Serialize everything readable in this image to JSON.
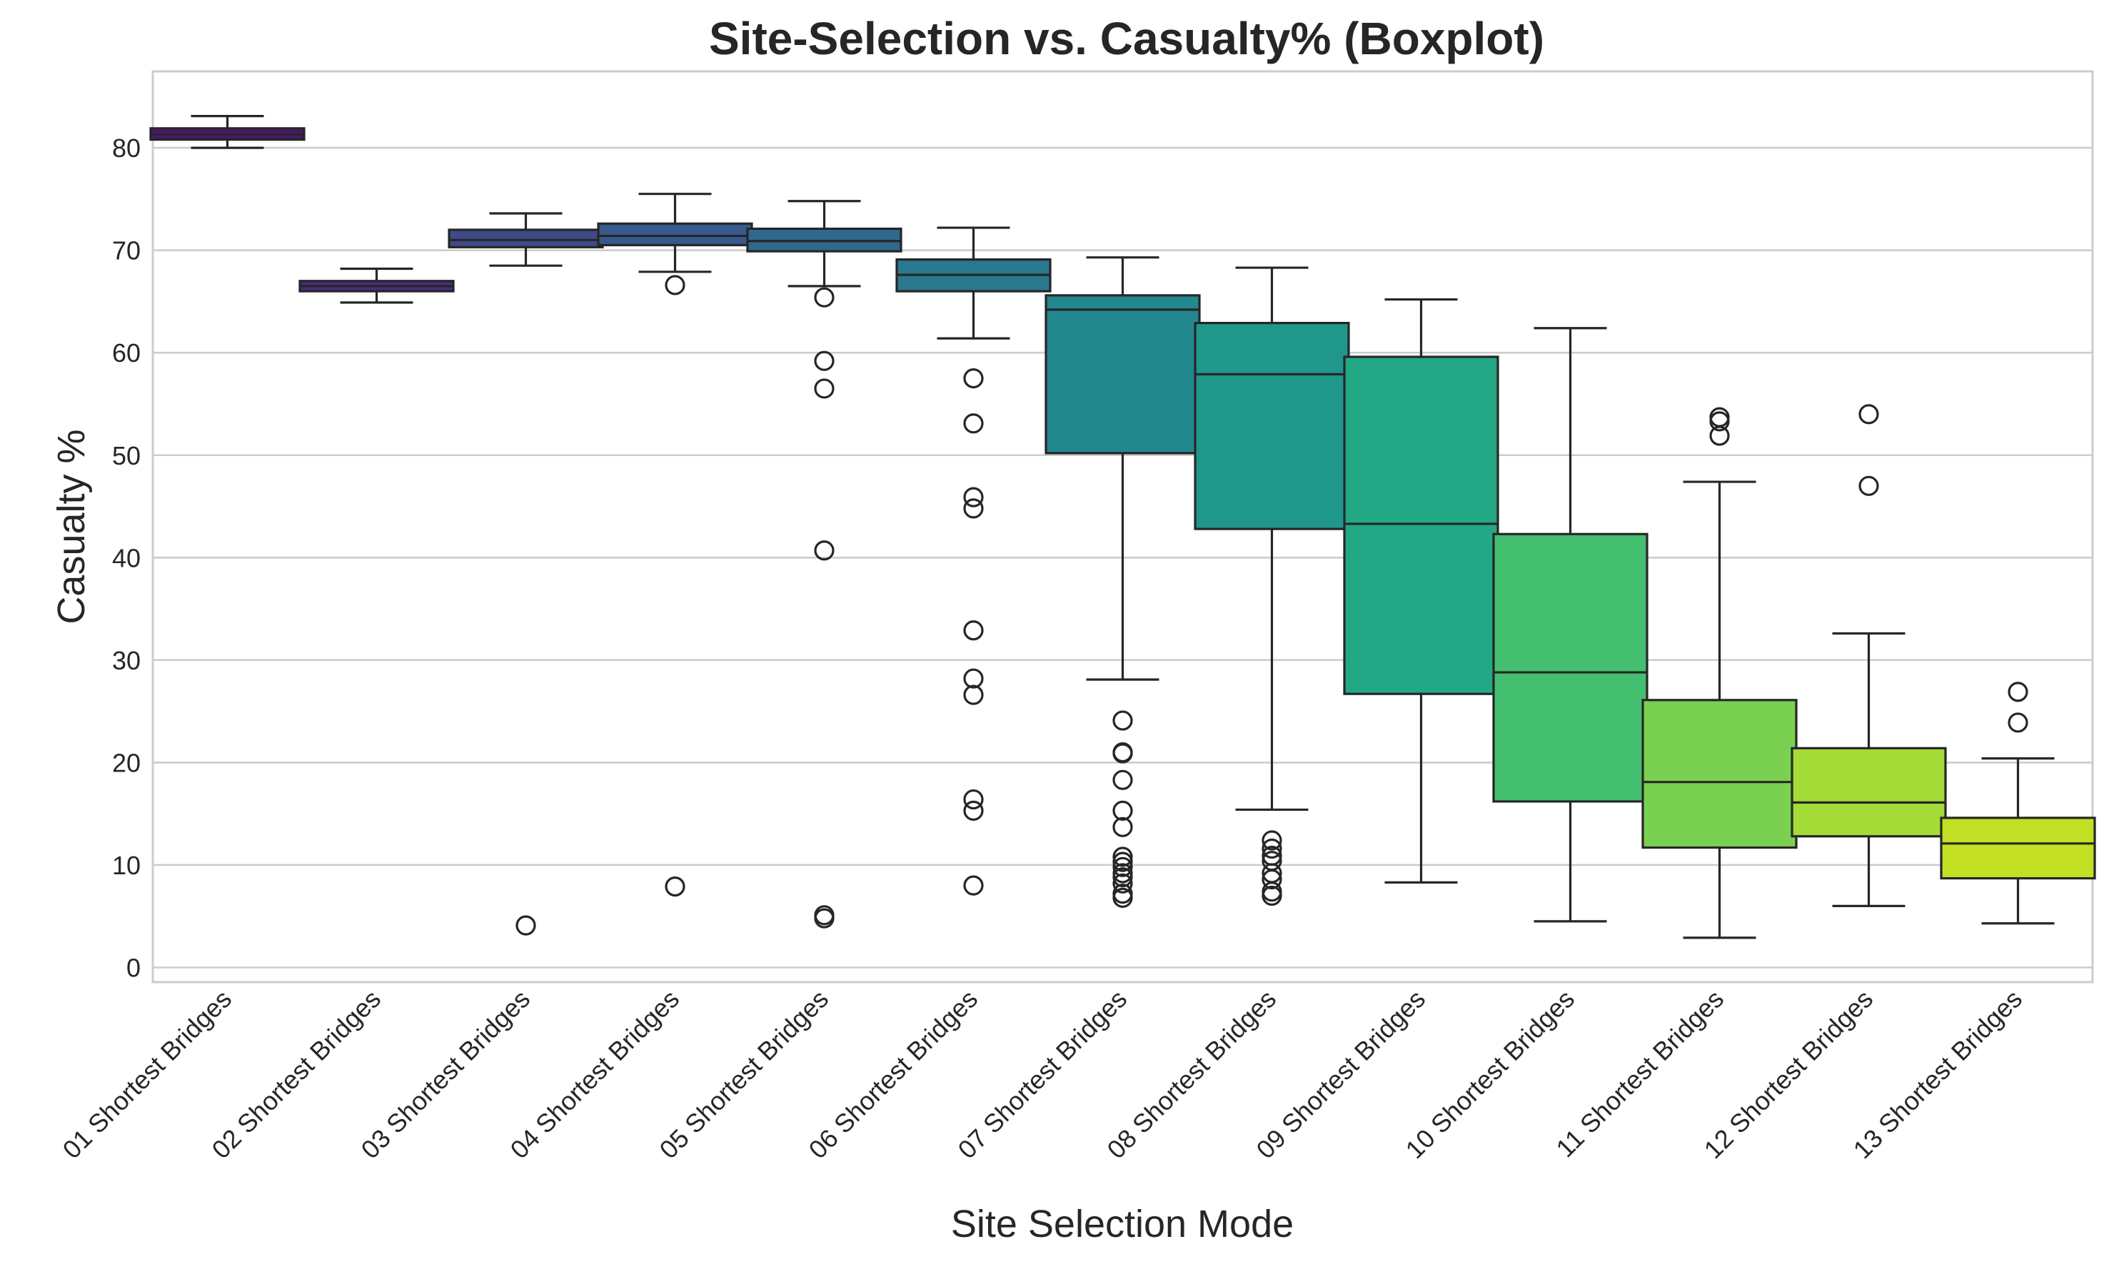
{
  "chart_data": {
    "type": "boxplot",
    "title": "Site-Selection vs. Casualty% (Boxplot)",
    "xlabel": "Site Selection Mode",
    "ylabel": "Casualty %",
    "ylim": [
      -2,
      87.5
    ],
    "yticks": [
      0,
      10,
      20,
      30,
      40,
      50,
      60,
      70,
      80
    ],
    "grid": "horizontal",
    "palette": "viridis",
    "categories": [
      "01 Shortest Bridges",
      "02 Shortest Bridges",
      "03 Shortest Bridges",
      "04 Shortest Bridges",
      "05 Shortest Bridges",
      "06 Shortest Bridges",
      "07 Shortest Bridges",
      "08 Shortest Bridges",
      "09 Shortest Bridges",
      "10 Shortest Bridges",
      "11 Shortest Bridges",
      "12 Shortest Bridges",
      "13 Shortest Bridges"
    ],
    "boxes": [
      {
        "whislo": 80.0,
        "q1": 80.8,
        "median": 81.3,
        "q3": 81.9,
        "whishi": 83.1,
        "fliers": [],
        "color": "#48186a"
      },
      {
        "whislo": 64.9,
        "q1": 66.0,
        "median": 66.5,
        "q3": 67.0,
        "whishi": 68.2,
        "fliers": [],
        "color": "#472d7b"
      },
      {
        "whislo": 68.5,
        "q1": 70.3,
        "median": 71.0,
        "q3": 72.0,
        "whishi": 73.6,
        "fliers": [
          4.1
        ],
        "color": "#3e4a89"
      },
      {
        "whislo": 67.9,
        "q1": 70.5,
        "median": 71.4,
        "q3": 72.6,
        "whishi": 75.5,
        "fliers": [
          66.6,
          7.9
        ],
        "color": "#38598c"
      },
      {
        "whislo": 66.5,
        "q1": 69.9,
        "median": 70.9,
        "q3": 72.1,
        "whishi": 74.8,
        "fliers": [
          65.4,
          59.2,
          56.5,
          40.7,
          5.1,
          4.8
        ],
        "color": "#30698e"
      },
      {
        "whislo": 61.4,
        "q1": 66.0,
        "median": 67.6,
        "q3": 69.1,
        "whishi": 72.2,
        "fliers": [
          57.5,
          53.1,
          45.9,
          44.8,
          32.9,
          28.2,
          26.6,
          16.4,
          15.3,
          8.0
        ],
        "color": "#2a788e"
      },
      {
        "whislo": 28.1,
        "q1": 50.2,
        "median": 64.2,
        "q3": 65.6,
        "whishi": 69.3,
        "fliers": [
          24.1,
          21.0,
          20.9,
          18.3,
          15.3,
          13.7,
          10.8,
          10.3,
          9.8,
          9.2,
          8.8,
          8.2,
          7.2,
          6.8
        ],
        "color": "#23888e"
      },
      {
        "whislo": 15.4,
        "q1": 42.8,
        "median": 57.9,
        "q3": 62.9,
        "whishi": 68.3,
        "fliers": [
          12.4,
          11.6,
          10.9,
          10.4,
          9.2,
          8.6,
          7.4,
          7.0
        ],
        "color": "#1f988b"
      },
      {
        "whislo": 8.3,
        "q1": 26.7,
        "median": 43.3,
        "q3": 59.6,
        "whishi": 65.2,
        "fliers": [],
        "color": "#22a884"
      },
      {
        "whislo": 4.5,
        "q1": 16.2,
        "median": 28.8,
        "q3": 42.3,
        "whishi": 62.4,
        "fliers": [],
        "color": "#44bf70"
      },
      {
        "whislo": 2.9,
        "q1": 11.7,
        "median": 18.1,
        "q3": 26.1,
        "whishi": 47.4,
        "fliers": [
          53.7,
          53.3,
          51.9
        ],
        "color": "#7ad151"
      },
      {
        "whislo": 6.0,
        "q1": 12.8,
        "median": 16.1,
        "q3": 21.4,
        "whishi": 32.6,
        "fliers": [
          54.0,
          47.0
        ],
        "color": "#a5db36"
      },
      {
        "whislo": 4.3,
        "q1": 8.7,
        "median": 12.1,
        "q3": 14.6,
        "whishi": 20.4,
        "fliers": [
          26.9,
          23.9
        ],
        "color": "#c2df23"
      }
    ]
  }
}
